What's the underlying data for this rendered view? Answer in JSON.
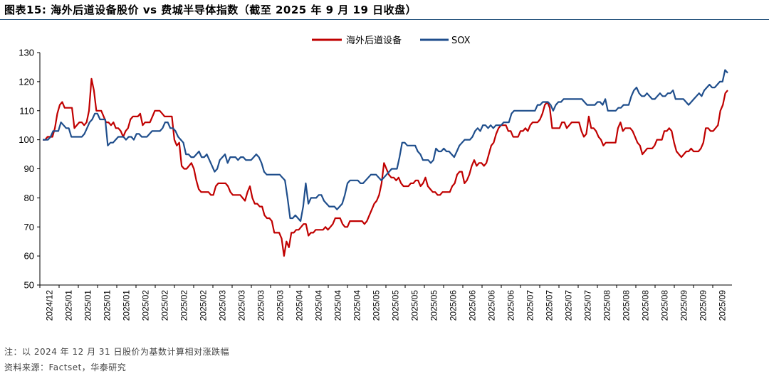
{
  "title": "图表15:  海外后道设备股价 vs 费城半导体指数（截至 2025 年 9 月 19 日收盘）",
  "footer": {
    "note": "注：以 2024 年 12 月 31 日股价为基数计算相对涨跌幅",
    "source": "资料来源：Factset，华泰研究"
  },
  "colors": {
    "series_red": "#c00000",
    "series_blue": "#1f4e8c",
    "rule": "#1f4e79"
  },
  "chart_data": {
    "type": "line",
    "title": "",
    "xlabel": "",
    "ylabel": "",
    "ylim": [
      50,
      130
    ],
    "yticks": [
      50,
      60,
      70,
      80,
      90,
      100,
      110,
      120,
      130
    ],
    "grid": false,
    "legend_placement": "top-center",
    "xtick_labels": [
      "2024/12",
      "2025/01",
      "2025/01",
      "2025/01",
      "2025/01",
      "2025/02",
      "2025/02",
      "2025/02",
      "2025/02",
      "2025/03",
      "2025/03",
      "2025/03",
      "2025/03",
      "2025/04",
      "2025/04",
      "2025/04",
      "2025/04",
      "2025/05",
      "2025/05",
      "2025/05",
      "2025/05",
      "2025/06",
      "2025/06",
      "2025/06",
      "2025/06",
      "2025/07",
      "2025/07",
      "2025/07",
      "2025/07",
      "2025/08",
      "2025/08",
      "2025/08",
      "2025/08",
      "2025/09",
      "2025/09",
      "2025/09"
    ],
    "series": [
      {
        "name": "海外后道设备",
        "color": "#c00000",
        "values": [
          100,
          100,
          101,
          101,
          101,
          104,
          109,
          112,
          113,
          111,
          111,
          111,
          111,
          104,
          105,
          106,
          106,
          105,
          106,
          110,
          121,
          117,
          110,
          110,
          110,
          108,
          106,
          106,
          105,
          106,
          104,
          104,
          103,
          101,
          103,
          104,
          107,
          108,
          108,
          108,
          109,
          105,
          106,
          106,
          106,
          108,
          110,
          110,
          110,
          109,
          108,
          108,
          108,
          108,
          100,
          98,
          99,
          91,
          90,
          90,
          91,
          92,
          90,
          86,
          83,
          82,
          82,
          82,
          82,
          81,
          81,
          84,
          85,
          85,
          85,
          85,
          84,
          82,
          81,
          81,
          81,
          81,
          80,
          79,
          82,
          84,
          80,
          78,
          78,
          77,
          77,
          74,
          73,
          73,
          72,
          68,
          68,
          68,
          66,
          60,
          65,
          63,
          68,
          68,
          69,
          69,
          70,
          71,
          71,
          67,
          68,
          68,
          69,
          69,
          69,
          69,
          70,
          69,
          70,
          71,
          73,
          73,
          73,
          71,
          70,
          70,
          72,
          72,
          72,
          72,
          72,
          72,
          71,
          72,
          74,
          76,
          78,
          79,
          81,
          85,
          92,
          90,
          88,
          87,
          87,
          86,
          87,
          85,
          84,
          84,
          84,
          85,
          85,
          86,
          86,
          84,
          85,
          87,
          84,
          83,
          82,
          82,
          81,
          81,
          82,
          82,
          82,
          82,
          84,
          85,
          88,
          89,
          89,
          85,
          86,
          88,
          91,
          93,
          91,
          92,
          92,
          91,
          92,
          95,
          98,
          99,
          102,
          104,
          105,
          105,
          105,
          103,
          103,
          101,
          101,
          101,
          103,
          103,
          104,
          103,
          105,
          106,
          106,
          106,
          107,
          109,
          112,
          113,
          111,
          104,
          104,
          104,
          104,
          106,
          106,
          104,
          105,
          106,
          106,
          106,
          106,
          103,
          101,
          102,
          108,
          104,
          104,
          103,
          101,
          100,
          98,
          99,
          99,
          99,
          99,
          99,
          104,
          106,
          103,
          104,
          104,
          104,
          103,
          101,
          99,
          98,
          95,
          96,
          97,
          97,
          97,
          98,
          100,
          100,
          100,
          103,
          103,
          104,
          103,
          99,
          96,
          95,
          94,
          95,
          96,
          96,
          97,
          96,
          96,
          96,
          97,
          99,
          104,
          104,
          103,
          103,
          104,
          105,
          110,
          112,
          116,
          117
        ]
      },
      {
        "name": "SOX",
        "color": "#1f4e8c",
        "values": [
          100,
          100,
          100,
          101,
          103,
          103,
          103,
          106,
          105,
          104,
          104,
          101,
          101,
          101,
          101,
          101,
          102,
          104,
          106,
          107,
          109,
          109,
          107,
          107,
          107,
          98,
          99,
          99,
          100,
          101,
          101,
          101,
          100,
          101,
          101,
          100,
          102,
          102,
          101,
          101,
          101,
          102,
          103,
          103,
          103,
          103,
          104,
          106,
          106,
          104,
          104,
          103,
          101,
          100,
          99,
          95,
          95,
          94,
          94,
          95,
          96,
          94,
          94,
          95,
          93,
          91,
          89,
          90,
          93,
          94,
          95,
          92,
          94,
          94,
          94,
          93,
          94,
          94,
          93,
          93,
          93,
          94,
          95,
          94,
          92,
          89,
          88,
          88,
          88,
          88,
          88,
          88,
          87,
          86,
          80,
          73,
          73,
          74,
          73,
          72,
          77,
          85,
          78,
          80,
          80,
          80,
          81,
          81,
          79,
          78,
          77,
          77,
          77,
          76,
          77,
          78,
          81,
          85,
          86,
          86,
          86,
          86,
          85,
          85,
          86,
          87,
          88,
          88,
          88,
          87,
          86,
          87,
          88,
          89,
          90,
          90,
          90,
          94,
          99,
          99,
          98,
          98,
          98,
          98,
          96,
          95,
          93,
          93,
          93,
          92,
          93,
          97,
          96,
          96,
          97,
          96,
          96,
          95,
          94,
          96,
          98,
          99,
          100,
          100,
          100,
          101,
          103,
          104,
          103,
          105,
          105,
          104,
          105,
          104,
          105,
          105,
          105,
          106,
          106,
          106,
          109,
          110,
          110,
          110,
          110,
          110,
          110,
          110,
          110,
          110,
          112,
          112,
          113,
          113,
          113,
          112,
          110,
          112,
          113,
          113,
          114,
          114,
          114,
          114,
          114,
          114,
          114,
          114,
          113,
          112,
          112,
          112,
          112,
          113,
          113,
          112,
          114,
          110,
          110,
          110,
          110,
          111,
          111,
          112,
          112,
          112,
          115,
          117,
          118,
          116,
          115,
          115,
          116,
          115,
          114,
          114,
          115,
          116,
          115,
          115,
          116,
          116,
          117,
          114,
          114,
          114,
          114,
          113,
          112,
          113,
          114,
          115,
          116,
          115,
          117,
          118,
          119,
          118,
          118,
          119,
          120,
          120,
          124,
          123
        ]
      }
    ]
  }
}
